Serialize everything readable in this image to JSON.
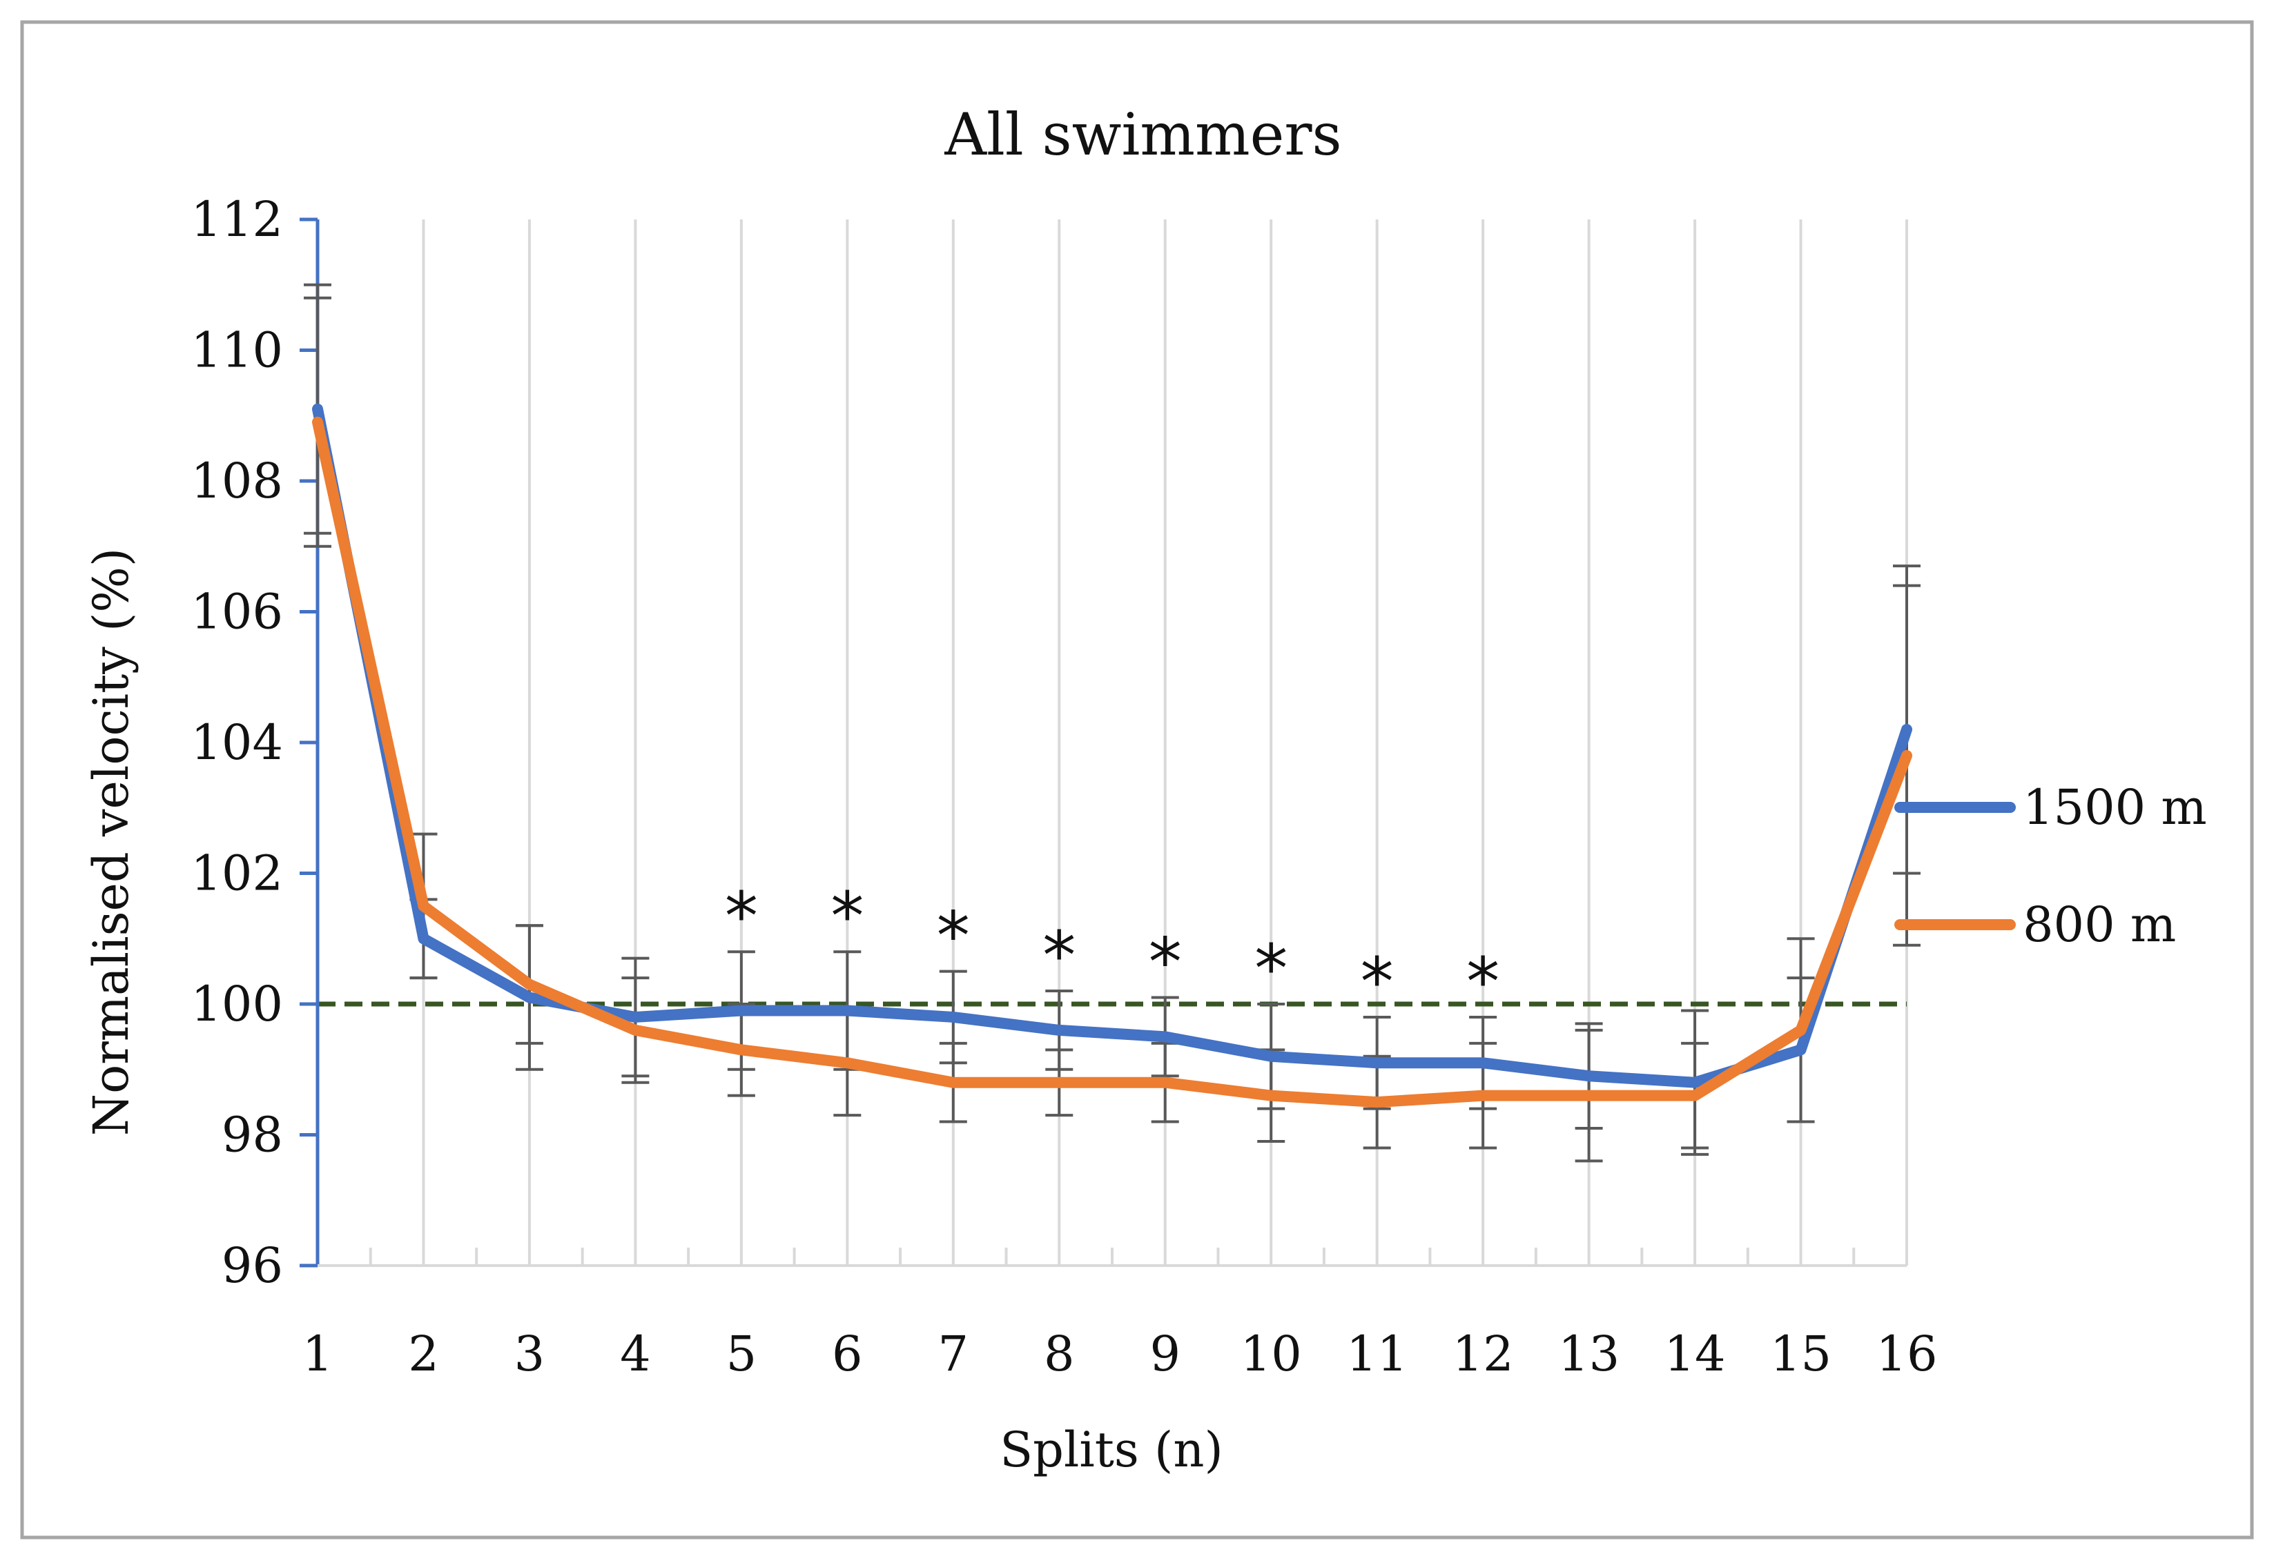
{
  "chart_data": {
    "type": "line",
    "title": "All swimmers",
    "xlabel": "Splits (n)",
    "ylabel": "Normalised velocity (%)",
    "ylim": [
      96,
      112
    ],
    "yticks": [
      "96",
      "98",
      "100",
      "102",
      "104",
      "106",
      "108",
      "110",
      "112"
    ],
    "categories": [
      "1",
      "2",
      "3",
      "4",
      "5",
      "6",
      "7",
      "8",
      "9",
      "10",
      "11",
      "12",
      "13",
      "14",
      "15",
      "16"
    ],
    "reference_line": {
      "value": 100,
      "style": "dashed",
      "color": "#375623"
    },
    "significance_marker": "*",
    "significant_splits": [
      "5",
      "6",
      "7",
      "8",
      "9",
      "10",
      "11",
      "12"
    ],
    "legend_position": "right",
    "series": [
      {
        "name": "1500 m",
        "color": "#4472C4",
        "values": [
          109.1,
          101.0,
          100.1,
          99.8,
          99.9,
          99.9,
          99.8,
          99.6,
          99.5,
          99.2,
          99.1,
          99.1,
          98.9,
          98.8,
          99.3,
          104.2
        ],
        "error": [
          1.9,
          0.6,
          1.1,
          0.9,
          0.9,
          0.9,
          0.7,
          0.6,
          0.6,
          0.8,
          0.7,
          0.7,
          0.8,
          1.1,
          1.1,
          2.2
        ]
      },
      {
        "name": "800 m",
        "color": "#ED7D31",
        "values": [
          108.9,
          101.5,
          100.3,
          99.6,
          99.3,
          99.1,
          98.8,
          98.8,
          98.8,
          98.6,
          98.5,
          98.6,
          98.6,
          98.6,
          99.6,
          103.8
        ],
        "error": [
          1.9,
          1.1,
          0.9,
          0.8,
          0.7,
          0.8,
          0.6,
          0.5,
          0.6,
          0.7,
          0.7,
          0.8,
          1.0,
          0.8,
          1.4,
          2.9
        ]
      }
    ]
  }
}
